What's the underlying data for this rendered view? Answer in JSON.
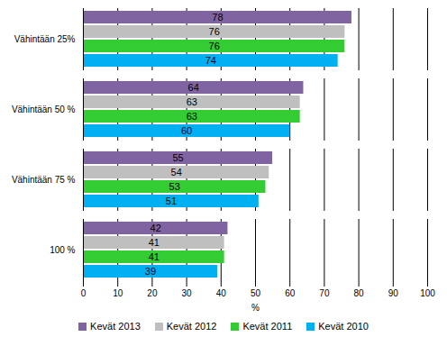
{
  "chart_data": {
    "type": "bar",
    "orientation": "horizontal",
    "categories": [
      "Vähintään 25%",
      "Vähintään 50 %",
      "Vähintään 75 %",
      "100 %"
    ],
    "series": [
      {
        "name": "Kevät 2013",
        "color": "#8064a2",
        "values": [
          78,
          64,
          55,
          42
        ]
      },
      {
        "name": "Kevät 2012",
        "color": "#bfbfbf",
        "values": [
          76,
          63,
          54,
          41
        ]
      },
      {
        "name": "Kevät 2011",
        "color": "#33cc33",
        "values": [
          76,
          63,
          53,
          41
        ]
      },
      {
        "name": "Kevät 2010",
        "color": "#00b0f0",
        "values": [
          74,
          60,
          51,
          39
        ]
      }
    ],
    "xlabel": "%",
    "xlim": [
      0,
      100
    ],
    "xticks": [
      0,
      10,
      20,
      30,
      40,
      50,
      60,
      70,
      80,
      90,
      100
    ],
    "grid": true,
    "data_labels": true,
    "legend": "bottom"
  }
}
